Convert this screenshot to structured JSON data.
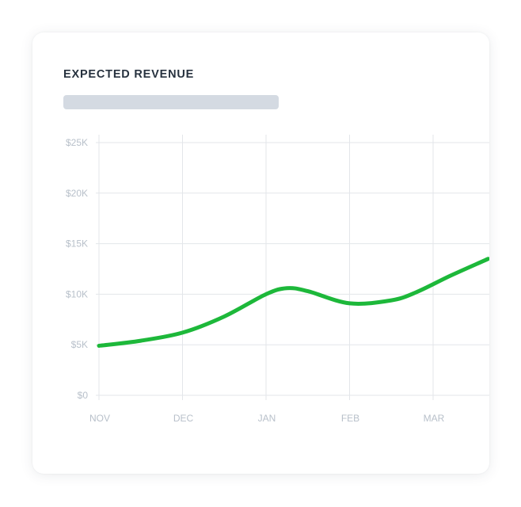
{
  "card": {
    "title": "EXPECTED REVENUE"
  },
  "colors": {
    "line": "#1db83a",
    "grid": "#e3e6ea",
    "tick_text": "#b8c0ca",
    "title": "#27323f",
    "placeholder": "#d4dae2"
  },
  "chart_data": {
    "type": "line",
    "title": "EXPECTED REVENUE",
    "xlabel": "",
    "ylabel": "",
    "categories": [
      "NOV",
      "DEC",
      "JAN",
      "FEB",
      "MAR"
    ],
    "y_tick_labels": [
      "$0",
      "$5K",
      "$10K",
      "$15K",
      "$20K",
      "$25K"
    ],
    "y_ticks": [
      0,
      5000,
      10000,
      15000,
      20000,
      25000
    ],
    "ylim": [
      0,
      25000
    ],
    "grid": true,
    "legend": "none",
    "series": [
      {
        "x": [
          0,
          0.5,
          1,
          1.5,
          2,
          2.25,
          2.5,
          3,
          3.5,
          3.8,
          4.2,
          4.66
        ],
        "values": [
          4900,
          5400,
          6200,
          7800,
          10000,
          10600,
          10300,
          9100,
          9400,
          10200,
          11800,
          13500
        ]
      }
    ]
  }
}
